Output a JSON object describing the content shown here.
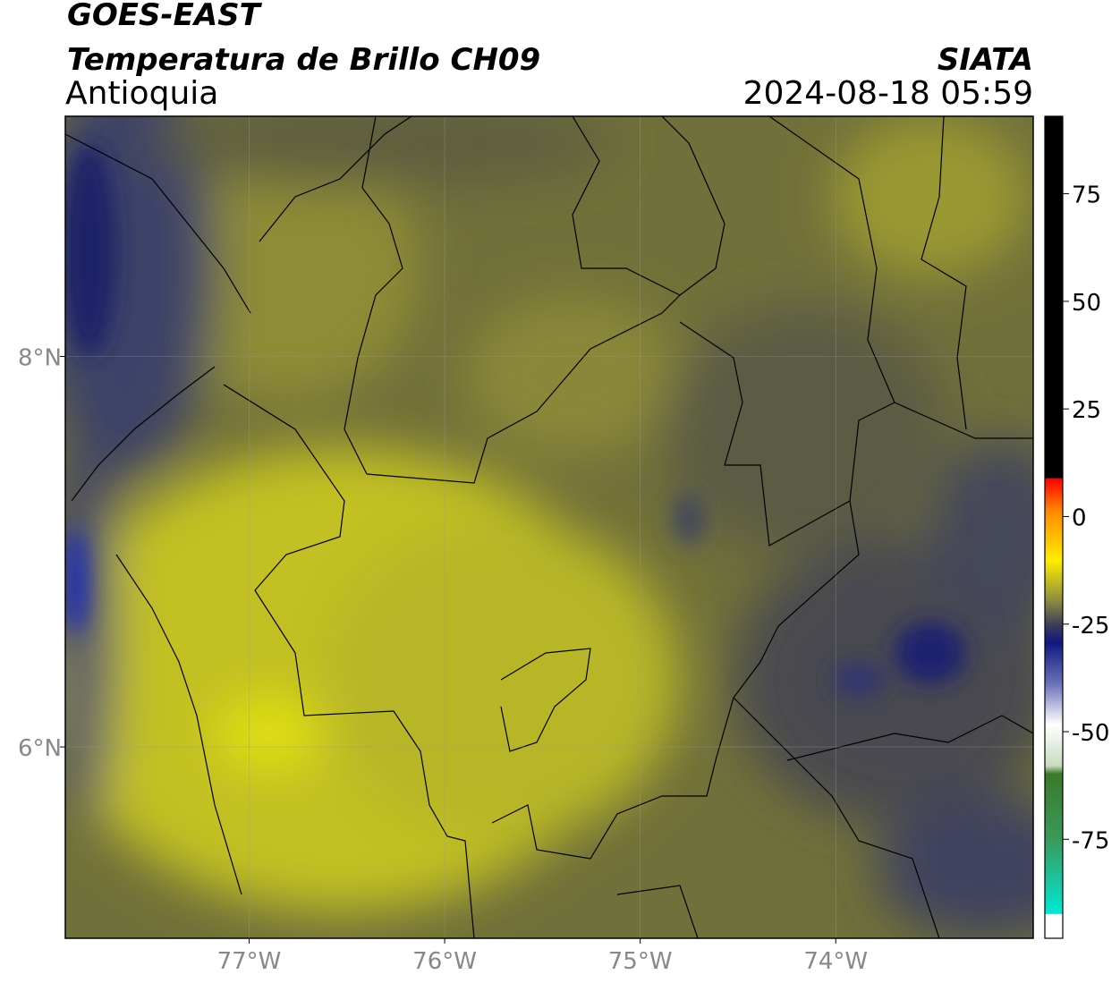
{
  "header": {
    "title": "GOES-EAST",
    "subtitle": "Temperatura de Brillo CH09",
    "region": "Antioquia",
    "source": "SIATA",
    "datetime": "2024-08-18 05:59"
  },
  "map": {
    "xlim": [
      -77.94,
      -72.99
    ],
    "ylim": [
      5.02,
      9.23
    ],
    "xticks": [
      {
        "value": -77,
        "label": "77°W"
      },
      {
        "value": -76,
        "label": "76°W"
      },
      {
        "value": -75,
        "label": "75°W"
      },
      {
        "value": -74,
        "label": "74°W"
      }
    ],
    "yticks": [
      {
        "value": 6,
        "label": "6°N"
      },
      {
        "value": 8,
        "label": "8°N"
      }
    ]
  },
  "colorbar": {
    "lim": [
      -98,
      93
    ],
    "ticks": [
      75,
      50,
      25,
      0,
      -25,
      -50,
      -75
    ]
  }
}
